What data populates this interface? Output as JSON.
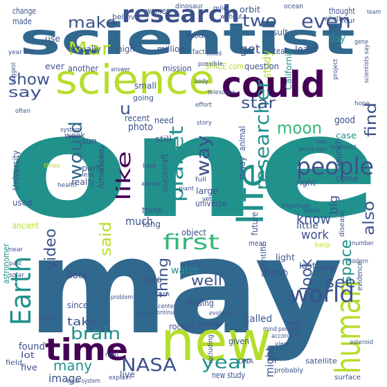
{
  "palette": {
    "background": "#ffffff",
    "purple": "#440154",
    "indigo": "#3b528b",
    "blue": "#31688e",
    "teal": "#21918c",
    "green": "#35b779",
    "lime": "#5ec962",
    "yellow": "#b5de2b"
  },
  "words": [
    "one",
    "may",
    "scientist",
    "new",
    "science",
    "could",
    "time",
    "human",
    "life",
    "Earth",
    "research",
    "people",
    "world",
    "researcher",
    "planet",
    "Mar",
    "first",
    "would",
    "like",
    "way",
    "year",
    "NASA",
    "show",
    "make",
    "even",
    "two",
    "moon",
    "say",
    "u",
    "star",
    "space",
    "find",
    "see",
    "brain",
    "video",
    "said",
    "thing",
    "look",
    "know",
    "also",
    "well",
    "many",
    "image",
    "take",
    "get",
    "study",
    "much",
    "big",
    "work",
    "might",
    "day",
    "good",
    "launch",
    "water",
    "called",
    "back",
    "found",
    "data",
    "case",
    "come",
    "week",
    "photo",
    "part",
    "sun",
    "need",
    "recent",
    "still",
    "American",
    "University",
    "team",
    "result",
    "question",
    "mission",
    "million",
    "made",
    "change",
    "women",
    "orbit",
    "dinosaur",
    "mile",
    "ocean",
    "thought",
    "without",
    "four",
    "use",
    "believe",
    "help",
    "food",
    "whether",
    "fact",
    "high",
    "actually",
    "ever",
    "another",
    "small",
    "SPACE com",
    "least",
    "California",
    "going",
    "system",
    "spacecraft",
    "really",
    "today",
    "animal",
    "right",
    "used",
    "large",
    "think",
    "universe",
    "long",
    "object",
    "little",
    "disease",
    "ancient",
    "future",
    "mean",
    "last",
    "light",
    "month",
    "finding",
    "astronomer",
    "scientific",
    "evidence",
    "lot",
    "since",
    "five",
    "rocket",
    "given",
    "live",
    "new study",
    "DNA",
    "satellite",
    "including",
    "view",
    "next",
    "field",
    "solar system",
    "explain",
    "turn",
    "probably",
    "surface",
    "year old",
    "team",
    "answer",
    "body",
    "possible",
    "telescope",
    "hope",
    "astronaut",
    "giant",
    "book",
    "story",
    "three",
    "health",
    "less",
    "full",
    "appear",
    "important",
    "better",
    "particle",
    "modern",
    "number",
    "social",
    "best",
    "mind",
    "percent",
    "according",
    "asteroid",
    "center",
    "problem",
    "seen",
    "continue",
    "evolution",
    "dark",
    "near",
    "past",
    "solar",
    "often",
    "years ago",
    "effort",
    "project",
    "suggest",
    "gene",
    "scientists say",
    "based",
    "yet",
    "case",
    "something"
  ]
}
